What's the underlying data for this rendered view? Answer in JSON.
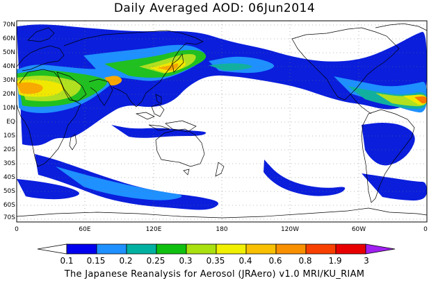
{
  "title": "Daily Averaged AOD: 06Jun2014",
  "credit": "The Japanese Reanalysis for Aerosol (JRAero) v1.0 MRI/KU_RIAM",
  "map": {
    "lat_ticks": [
      "70N",
      "60N",
      "50N",
      "40N",
      "30N",
      "20N",
      "10N",
      "EQ",
      "10S",
      "20S",
      "30S",
      "40S",
      "50S",
      "60S",
      "70S"
    ],
    "lon_ticks": [
      "0",
      "60E",
      "120E",
      "180",
      "120W",
      "60W",
      "0"
    ]
  },
  "colorbar": {
    "labels": [
      "0.1",
      "0.15",
      "0.2",
      "0.25",
      "0.3",
      "0.35",
      "0.4",
      "0.6",
      "0.8",
      "1.9",
      "3"
    ],
    "colors": [
      "#ffffff",
      "#0000ee",
      "#1e90ff",
      "#00b0a0",
      "#10c010",
      "#a8e010",
      "#f0f000",
      "#f8c000",
      "#f89000",
      "#f84000",
      "#e80000",
      "#a020f0"
    ]
  },
  "palette": {
    "blue": "#0a1edc",
    "lightblue": "#1e90ff",
    "teal": "#10b0a0",
    "green": "#20c020",
    "yellowgreen": "#b0e020",
    "yellow": "#f0e800",
    "orange": "#f8a800",
    "darkorange": "#f87800"
  }
}
